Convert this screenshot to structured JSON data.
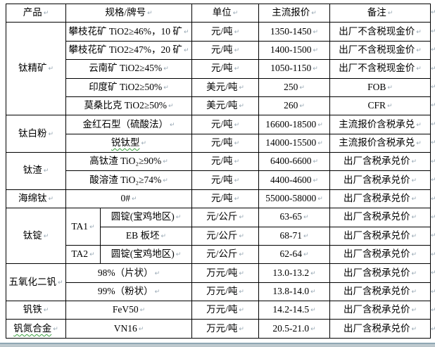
{
  "table": {
    "header": {
      "product": "产品",
      "spec": "规格/牌号",
      "unit": "单位",
      "price": "主流报价",
      "note": "备注"
    },
    "groups": [
      {
        "product": "钛精矿",
        "rows": [
          {
            "spec": "攀枝花矿 TiO2≥46%，10 矿",
            "unit": "元/吨",
            "price": "1350-1450",
            "note": "出厂不含税现金价"
          },
          {
            "spec": "攀枝花矿 TiO2≥47%，20 矿",
            "unit": "元/吨",
            "price": "1400-1500",
            "note": "出厂不含税现金价"
          },
          {
            "spec": "云南矿 TiO2≥45%",
            "unit": "元/吨",
            "price": "1050-1150",
            "note": "出厂不含税现金价"
          },
          {
            "spec": "印度矿 TiO2≥50%",
            "unit": "美元/吨",
            "price": "250",
            "note": "FOB"
          },
          {
            "spec": "莫桑比克 TiO2≥50%",
            "unit": "美元/吨",
            "price": "260",
            "note": "CFR"
          }
        ]
      },
      {
        "product": "钛白粉",
        "rows": [
          {
            "spec": "金红石型（硫酸法）",
            "unit": "元/吨",
            "price": "16600-18500",
            "note": "主流报价含税承兑"
          },
          {
            "spec": "锐钛型",
            "unit": "元/吨",
            "price": "14000-15500",
            "note": "主流报价含税承兑"
          }
        ]
      },
      {
        "product": "钛渣",
        "rows": [
          {
            "spec": "高钛渣 TiO₂≥90%",
            "unit": "元/吨",
            "price": "6400-6600",
            "note": "出厂含税承兑价"
          },
          {
            "spec": "酸溶渣 TiO₂≥74%",
            "unit": "元/吨",
            "price": "4400-4600",
            "note": "出厂含税承兑价"
          }
        ]
      },
      {
        "product": "海绵钛",
        "rows": [
          {
            "spec": "0#",
            "unit": "元/吨",
            "price": "55000-58000",
            "note": "出厂含税承兑价"
          }
        ]
      },
      {
        "product": "钛锭",
        "rows": [
          {
            "grade": "TA1",
            "spec": "圆锭(宝鸡地区)",
            "unit": "元/公斤",
            "price": "63-65",
            "note": "出厂含税承兑价"
          },
          {
            "spec": "EB 板坯",
            "unit": "元/公斤",
            "price": "68-71",
            "note": "出厂含税承兑价"
          },
          {
            "grade": "TA2",
            "spec": "圆锭(宝鸡地区)",
            "unit": "元/公斤",
            "price": "62-64",
            "note": "出厂含税承兑价"
          }
        ]
      },
      {
        "product": "五氧化二钒",
        "rows": [
          {
            "spec": "98%（片状）",
            "unit": "万元/吨",
            "price": "13.0-13.2",
            "note": "出厂含税承兑价"
          },
          {
            "spec": "99%（粉状）",
            "unit": "万元/吨",
            "price": "13.8-14.0",
            "note": "出厂含税承兑价"
          }
        ]
      },
      {
        "product": "钒铁",
        "rows": [
          {
            "spec": "FeV50",
            "unit": "万元/吨",
            "price": "14.2-14.5",
            "note": "出厂含税承兑价"
          }
        ]
      },
      {
        "product": "钒氮合金",
        "rows": [
          {
            "spec": "VN16",
            "unit": "万元/吨",
            "price": "20.5-21.0",
            "note": "出厂含税承兑价"
          }
        ]
      }
    ]
  },
  "marks": {
    "cell_end_glyph": "↵",
    "row_end_glyph": "↵",
    "row_count": 18
  },
  "colors": {
    "border": "#000000",
    "text": "#000000",
    "formatting_mark": "#98a8b4",
    "spellcheck_underline": "#38a03c",
    "bottom_bar": "#8fa7b3"
  }
}
